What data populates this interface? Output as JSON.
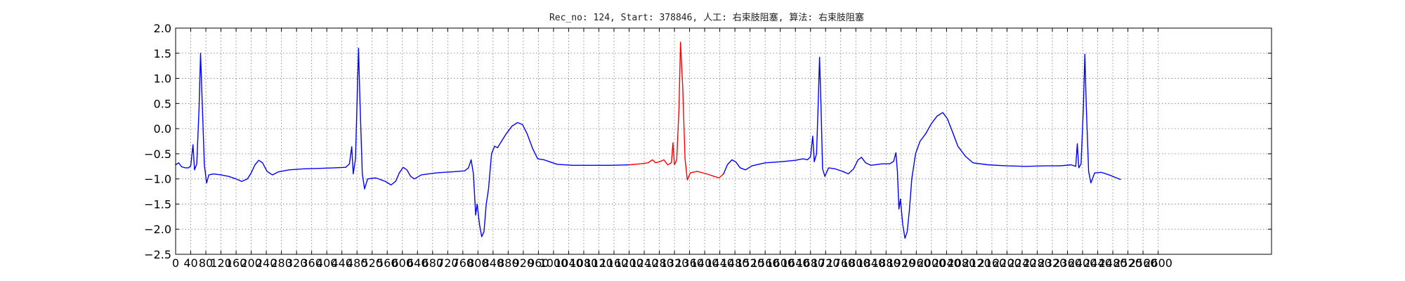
{
  "chart_data": {
    "type": "line",
    "title": "Rec_no: 124, Start: 378846, 人工: 右束肢阻塞, 算法: 右束肢阻塞",
    "xlabel": "",
    "ylabel": "",
    "xlim": [
      0,
      2900
    ],
    "ylim": [
      -2.5,
      2.0
    ],
    "grid": true,
    "yticks": [
      2.0,
      1.5,
      1.0,
      0.5,
      0.0,
      -0.5,
      -1.0,
      -1.5,
      -2.0,
      -2.5
    ],
    "ytick_labels": [
      "2.0",
      "1.5",
      "1.0",
      "0.5",
      "0.0",
      "−0.5",
      "−1.0",
      "−1.5",
      "−2.0",
      "−2.5"
    ],
    "xtick_labels": [
      "0",
      "40",
      "80",
      "120",
      "160",
      "200",
      "240",
      "280",
      "320",
      "360",
      "400",
      "440",
      "480",
      "520",
      "560",
      "600",
      "640",
      "680",
      "720",
      "760",
      "800",
      "840",
      "880",
      "920",
      "960",
      "1000",
      "1040",
      "1080",
      "1120",
      "1160",
      "1200",
      "1240",
      "1280",
      "1320",
      "1360",
      "1400",
      "1440",
      "1480",
      "1520",
      "1560",
      "1600",
      "1640",
      "1680",
      "1720",
      "1760",
      "1800",
      "1840",
      "1880",
      "1920",
      "1960",
      "2000",
      "2040",
      "2080",
      "2120",
      "2160",
      "2200",
      "2240",
      "2280",
      "2320",
      "2360",
      "2400",
      "2440",
      "2480",
      "2520",
      "2560",
      "2600"
    ],
    "series": [
      {
        "color": "#0000ff",
        "points": [
          [
            0,
            -0.72
          ],
          [
            8,
            -0.68
          ],
          [
            16,
            -0.76
          ],
          [
            26,
            -0.78
          ],
          [
            34,
            -0.78
          ],
          [
            40,
            -0.74
          ],
          [
            46,
            -0.32
          ],
          [
            50,
            -0.82
          ],
          [
            56,
            -0.7
          ],
          [
            62,
            0.4
          ],
          [
            66,
            1.5
          ],
          [
            70,
            0.6
          ],
          [
            76,
            -0.72
          ],
          [
            82,
            -1.08
          ],
          [
            88,
            -0.92
          ],
          [
            100,
            -0.9
          ],
          [
            120,
            -0.92
          ],
          [
            140,
            -0.95
          ],
          [
            160,
            -1.0
          ],
          [
            175,
            -1.05
          ],
          [
            190,
            -1.0
          ],
          [
            200,
            -0.88
          ],
          [
            210,
            -0.72
          ],
          [
            220,
            -0.63
          ],
          [
            230,
            -0.68
          ],
          [
            242,
            -0.85
          ],
          [
            256,
            -0.92
          ],
          [
            272,
            -0.86
          ],
          [
            300,
            -0.82
          ],
          [
            340,
            -0.8
          ],
          [
            380,
            -0.79
          ],
          [
            420,
            -0.78
          ],
          [
            450,
            -0.77
          ],
          [
            460,
            -0.7
          ],
          [
            466,
            -0.36
          ],
          [
            470,
            -0.9
          ],
          [
            476,
            -0.6
          ],
          [
            480,
            0.5
          ],
          [
            484,
            1.6
          ],
          [
            488,
            0.5
          ],
          [
            494,
            -0.9
          ],
          [
            500,
            -1.2
          ],
          [
            508,
            -1.0
          ],
          [
            530,
            -0.98
          ],
          [
            555,
            -1.05
          ],
          [
            570,
            -1.12
          ],
          [
            582,
            -1.05
          ],
          [
            592,
            -0.88
          ],
          [
            602,
            -0.77
          ],
          [
            612,
            -0.82
          ],
          [
            622,
            -0.95
          ],
          [
            632,
            -1.0
          ],
          [
            650,
            -0.92
          ],
          [
            690,
            -0.88
          ],
          [
            730,
            -0.86
          ],
          [
            765,
            -0.84
          ],
          [
            775,
            -0.78
          ],
          [
            782,
            -0.62
          ],
          [
            788,
            -0.9
          ],
          [
            794,
            -1.72
          ],
          [
            798,
            -1.5
          ],
          [
            804,
            -1.9
          ],
          [
            810,
            -2.15
          ],
          [
            816,
            -2.05
          ],
          [
            822,
            -1.5
          ],
          [
            828,
            -1.2
          ],
          [
            836,
            -0.5
          ],
          [
            844,
            -0.35
          ],
          [
            852,
            -0.38
          ],
          [
            860,
            -0.28
          ],
          [
            875,
            -0.1
          ],
          [
            890,
            0.05
          ],
          [
            905,
            0.12
          ],
          [
            918,
            0.08
          ],
          [
            930,
            -0.1
          ],
          [
            945,
            -0.4
          ],
          [
            958,
            -0.6
          ],
          [
            975,
            -0.62
          ],
          [
            990,
            -0.66
          ],
          [
            1010,
            -0.71
          ],
          [
            1050,
            -0.73
          ],
          [
            1100,
            -0.73
          ],
          [
            1150,
            -0.73
          ],
          [
            1200,
            -0.72
          ]
        ]
      },
      {
        "color": "#ff0000",
        "points": [
          [
            1200,
            -0.72
          ],
          [
            1230,
            -0.7
          ],
          [
            1250,
            -0.68
          ],
          [
            1262,
            -0.62
          ],
          [
            1270,
            -0.68
          ],
          [
            1280,
            -0.66
          ],
          [
            1292,
            -0.62
          ],
          [
            1302,
            -0.72
          ],
          [
            1312,
            -0.68
          ],
          [
            1316,
            -0.28
          ],
          [
            1320,
            -0.72
          ],
          [
            1326,
            -0.62
          ],
          [
            1332,
            0.4
          ],
          [
            1336,
            1.72
          ],
          [
            1342,
            0.8
          ],
          [
            1348,
            -0.6
          ],
          [
            1354,
            -1.02
          ],
          [
            1362,
            -0.88
          ],
          [
            1380,
            -0.85
          ],
          [
            1405,
            -0.9
          ],
          [
            1425,
            -0.95
          ],
          [
            1438,
            -0.98
          ],
          [
            1450,
            -0.9
          ]
        ]
      },
      {
        "color": "#0000ff",
        "points": [
          [
            1450,
            -0.9
          ],
          [
            1460,
            -0.72
          ],
          [
            1472,
            -0.62
          ],
          [
            1482,
            -0.66
          ],
          [
            1494,
            -0.78
          ],
          [
            1508,
            -0.82
          ],
          [
            1525,
            -0.74
          ],
          [
            1560,
            -0.68
          ],
          [
            1600,
            -0.66
          ],
          [
            1640,
            -0.63
          ],
          [
            1660,
            -0.6
          ],
          [
            1672,
            -0.62
          ],
          [
            1680,
            -0.56
          ],
          [
            1686,
            -0.15
          ],
          [
            1690,
            -0.66
          ],
          [
            1696,
            -0.5
          ],
          [
            1700,
            0.4
          ],
          [
            1704,
            1.42
          ],
          [
            1708,
            0.4
          ],
          [
            1712,
            -0.8
          ],
          [
            1718,
            -0.95
          ],
          [
            1728,
            -0.78
          ],
          [
            1745,
            -0.8
          ],
          [
            1765,
            -0.85
          ],
          [
            1780,
            -0.9
          ],
          [
            1794,
            -0.8
          ],
          [
            1806,
            -0.62
          ],
          [
            1815,
            -0.57
          ],
          [
            1826,
            -0.68
          ],
          [
            1840,
            -0.73
          ],
          [
            1870,
            -0.7
          ],
          [
            1890,
            -0.7
          ],
          [
            1900,
            -0.65
          ],
          [
            1906,
            -0.48
          ],
          [
            1910,
            -0.85
          ],
          [
            1914,
            -1.6
          ],
          [
            1918,
            -1.4
          ],
          [
            1924,
            -1.9
          ],
          [
            1930,
            -2.18
          ],
          [
            1936,
            -2.05
          ],
          [
            1942,
            -1.6
          ],
          [
            1948,
            -1.0
          ],
          [
            1958,
            -0.5
          ],
          [
            1970,
            -0.25
          ],
          [
            1985,
            -0.1
          ],
          [
            2000,
            0.1
          ],
          [
            2015,
            0.25
          ],
          [
            2030,
            0.32
          ],
          [
            2042,
            0.2
          ],
          [
            2055,
            -0.05
          ],
          [
            2070,
            -0.35
          ],
          [
            2090,
            -0.55
          ],
          [
            2110,
            -0.68
          ],
          [
            2150,
            -0.72
          ],
          [
            2200,
            -0.74
          ],
          [
            2250,
            -0.75
          ],
          [
            2300,
            -0.74
          ],
          [
            2340,
            -0.74
          ],
          [
            2370,
            -0.72
          ],
          [
            2382,
            -0.75
          ],
          [
            2386,
            -0.3
          ],
          [
            2390,
            -0.78
          ],
          [
            2396,
            -0.7
          ],
          [
            2402,
            0.4
          ],
          [
            2406,
            1.48
          ],
          [
            2410,
            0.4
          ],
          [
            2416,
            -0.85
          ],
          [
            2422,
            -1.08
          ],
          [
            2432,
            -0.88
          ],
          [
            2450,
            -0.87
          ],
          [
            2470,
            -0.92
          ],
          [
            2490,
            -0.98
          ],
          [
            2500,
            -1.01
          ]
        ]
      }
    ]
  }
}
